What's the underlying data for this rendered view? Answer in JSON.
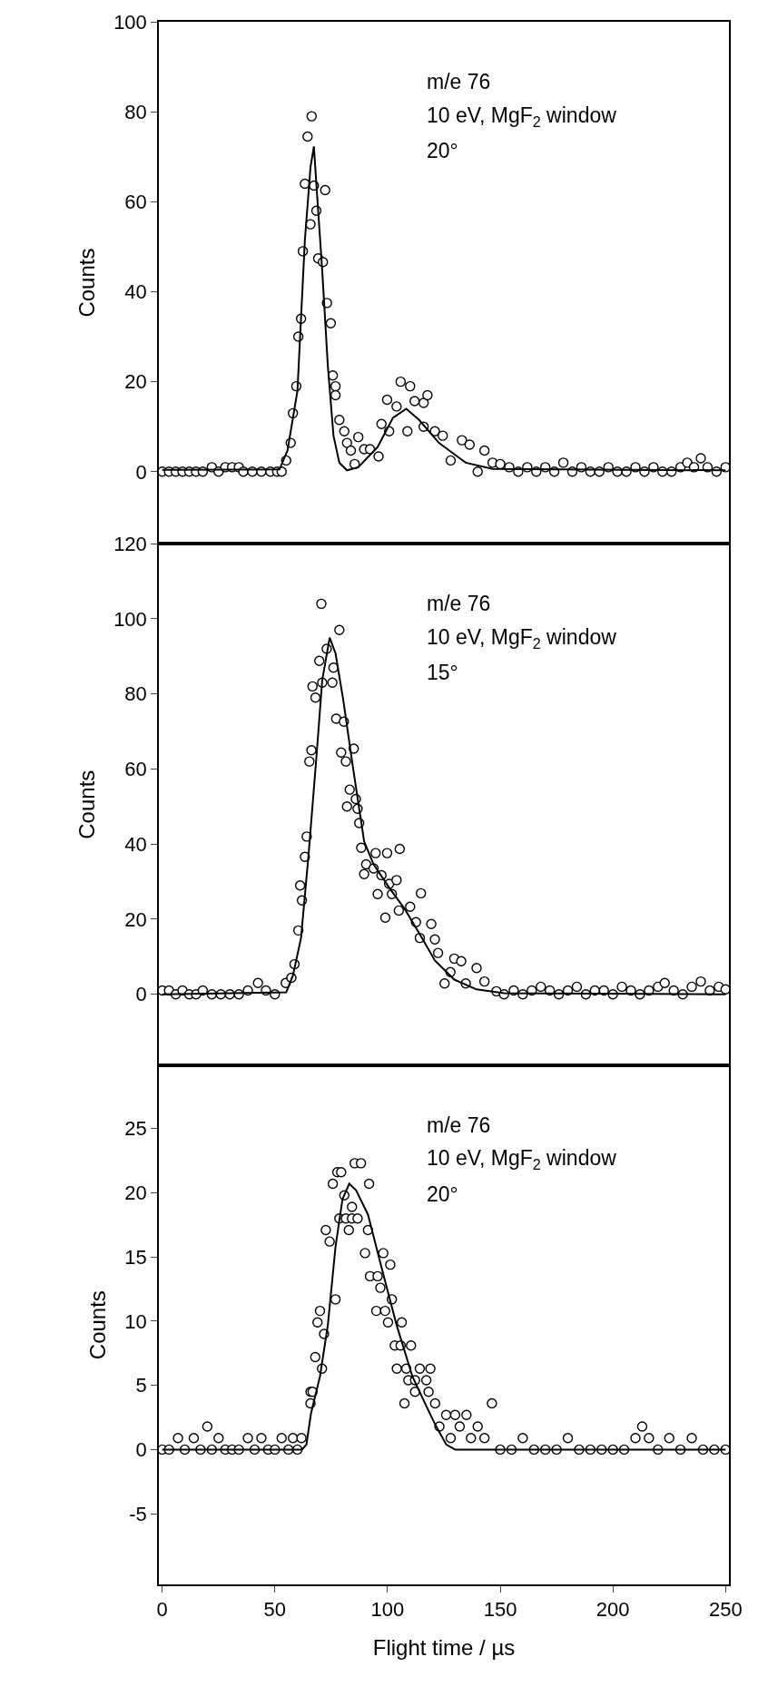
{
  "chart_data": [
    {
      "type": "scatter",
      "ylabel": "Counts",
      "annotations": [
        "m/e 76",
        "10 eV, MgF$_{2}$ window",
        "20°"
      ],
      "xlim": [
        -1.5,
        251.5
      ],
      "ylim": [
        -16,
        100
      ],
      "yticks": [
        0,
        20,
        40,
        60,
        80,
        100
      ],
      "tick_labels": "y",
      "series": [
        {
          "marker": "circle",
          "color": "#000000",
          "x": [
            0,
            3,
            6,
            9,
            12,
            15,
            18,
            22,
            25,
            28,
            31,
            34,
            36,
            40,
            44,
            48,
            51,
            53,
            55,
            57,
            58,
            59.5,
            60.4,
            61.6,
            62.4,
            63.3,
            64.5,
            65.8,
            66.3,
            67.3,
            68.4,
            69.2,
            71.3,
            72.3,
            73.1,
            74.8,
            75.7,
            76.9,
            76.9,
            78.6,
            80.8,
            82,
            83.7,
            85.4,
            87,
            89.6,
            92.2,
            96,
            97.3,
            99.8,
            100.7,
            104,
            105.8,
            108.8,
            110,
            112,
            116,
            116,
            117.7,
            121,
            124.5,
            128,
            133,
            136.4,
            140,
            143,
            146.6,
            150,
            154,
            158,
            162,
            166,
            170,
            174,
            178,
            182,
            186,
            190,
            194,
            198,
            202,
            206,
            210,
            214,
            218,
            222,
            226,
            230,
            233,
            236,
            239,
            242,
            246,
            250
          ],
          "values": [
            0,
            0,
            0,
            0,
            0,
            0,
            0,
            1,
            0,
            1,
            1,
            1,
            0,
            0,
            0,
            0,
            0,
            0,
            2.5,
            6.4,
            13,
            19,
            30,
            34,
            49,
            64,
            74.5,
            55,
            79,
            63.6,
            58,
            47.4,
            46.6,
            62.6,
            37.5,
            33,
            21.4,
            19,
            17,
            11.5,
            9,
            6.4,
            4.7,
            1.7,
            7.7,
            5,
            5,
            3.4,
            10.6,
            16,
            9,
            14.5,
            20,
            9,
            19,
            15.7,
            15.3,
            10,
            17,
            9,
            8,
            2.5,
            7,
            6,
            0,
            4.7,
            2,
            1.7,
            1,
            0,
            1,
            0,
            1,
            0,
            2,
            0,
            1,
            0,
            0,
            1,
            0,
            0,
            1,
            0,
            1,
            0,
            0,
            1,
            2,
            1,
            3,
            1,
            0,
            1
          ]
        },
        {
          "type": "line",
          "color": "#000000",
          "line_style": "solid",
          "x": [
            0,
            52,
            55.6,
            60,
            63.3,
            65.8,
            67.3,
            68.7,
            71,
            73.5,
            76,
            78.6,
            82,
            87,
            95.6,
            102.4,
            108.3,
            114,
            122.8,
            134.7,
            146.6,
            250
          ],
          "values": [
            0.4,
            0.5,
            4.7,
            18,
            51.5,
            67.7,
            72.3,
            61.7,
            44.7,
            23.4,
            8,
            2,
            0.3,
            1,
            5.5,
            12,
            14,
            11.5,
            6.4,
            2,
            0.6,
            0.3
          ]
        }
      ]
    },
    {
      "type": "scatter",
      "ylabel": "Counts",
      "annotations": [
        "m/e 76",
        "10 eV, MgF$_{2}$ window",
        "15°"
      ],
      "xlim": [
        -1.5,
        251.5
      ],
      "ylim": [
        -19,
        120
      ],
      "yticks": [
        0,
        20,
        40,
        60,
        80,
        100,
        120
      ],
      "tick_labels": "y",
      "series": [
        {
          "marker": "circle",
          "color": "#000000",
          "x": [
            0,
            3,
            6,
            9,
            12,
            15,
            18,
            22,
            26,
            30,
            34,
            38,
            42.5,
            46,
            50,
            54.8,
            57.3,
            58.7,
            60.4,
            61.2,
            62,
            63.3,
            64.1,
            65.3,
            66.2,
            66.7,
            68,
            69.7,
            70.6,
            71,
            73,
            75.5,
            76,
            77.2,
            78.6,
            79.4,
            80.6,
            81.5,
            82,
            83.2,
            85,
            85.9,
            86.7,
            87.4,
            88.3,
            89.6,
            90.5,
            93.8,
            94.7,
            95.6,
            97.3,
            99,
            99.8,
            100.7,
            101.9,
            104,
            105,
            105.4,
            110,
            112.6,
            114.3,
            114.8,
            119.4,
            121,
            122.4,
            125.3,
            127.9,
            129.6,
            132.7,
            134.7,
            139.5,
            143,
            148.3,
            151.7,
            156,
            160,
            164,
            168,
            172,
            176,
            180,
            184,
            188,
            192,
            196,
            200,
            204,
            208,
            212,
            216,
            220,
            223,
            227,
            231,
            235,
            239,
            243,
            247,
            250
          ],
          "values": [
            1,
            1,
            0,
            1,
            0,
            0,
            1,
            0,
            0,
            0,
            0,
            1,
            3,
            1,
            0,
            3,
            4.4,
            8,
            17,
            29,
            25,
            36.6,
            42,
            62,
            65,
            82,
            79,
            88.8,
            104,
            83,
            92,
            83,
            87,
            73.4,
            97,
            64.4,
            72.6,
            62,
            50,
            54.5,
            65.4,
            52,
            49.4,
            45.6,
            39,
            32,
            34.6,
            33.5,
            37.6,
            26.7,
            31.7,
            20.4,
            37.6,
            29.4,
            26.7,
            30.4,
            22.3,
            38.7,
            23.3,
            19.2,
            15,
            26.9,
            18.7,
            14.6,
            11,
            2.9,
            5.9,
            9.5,
            8.8,
            2.9,
            7,
            3.4,
            0.8,
            0,
            1,
            0,
            1,
            2,
            1,
            0,
            1,
            2,
            0,
            1,
            1,
            0,
            2,
            1,
            0,
            1,
            2,
            3,
            1,
            0,
            2,
            3.4,
            1,
            2,
            1.3
          ]
        },
        {
          "type": "line",
          "color": "#000000",
          "line_style": "solid",
          "x": [
            0,
            55,
            58,
            61.6,
            65,
            68.4,
            71,
            74.3,
            76.9,
            80.3,
            84.5,
            89.6,
            93.8,
            100.7,
            107.5,
            114.3,
            121,
            129.6,
            139.5,
            151.7,
            250
          ],
          "values": [
            0,
            0.5,
            5,
            15,
            37.6,
            63,
            83.6,
            95,
            90.8,
            78.5,
            61,
            40.7,
            34.6,
            28.4,
            22.8,
            16,
            9,
            3.9,
            1.3,
            0.3,
            0
          ]
        }
      ]
    },
    {
      "type": "scatter",
      "ylabel": "Counts",
      "xlabel": "Flight time / µs",
      "annotations": [
        "m/e 76",
        "10 eV, MgF$_{2}$ window",
        "20°"
      ],
      "xlim": [
        -1.5,
        251.5
      ],
      "xticks": [
        0,
        50,
        100,
        150,
        200,
        250
      ],
      "ylim": [
        -10.5,
        29.9
      ],
      "yticks": [
        -5,
        0,
        5,
        10,
        15,
        20,
        25
      ],
      "series": [
        {
          "marker": "circle",
          "color": "#000000",
          "x": [
            0,
            3,
            7,
            10,
            14,
            17,
            20,
            22,
            25,
            28,
            31,
            34,
            38,
            41,
            44,
            47,
            50,
            53,
            56,
            58,
            60,
            61.8,
            65.8,
            65.8,
            66.7,
            67.9,
            68.9,
            70,
            70.9,
            71.8,
            72.6,
            74.3,
            75.7,
            76.9,
            77.7,
            78.6,
            79.4,
            80.8,
            81.5,
            82.8,
            84.2,
            84.2,
            85.4,
            86.7,
            88.2,
            90,
            91.3,
            91.8,
            92.2,
            95,
            95.6,
            96.8,
            98.1,
            98.9,
            100.2,
            101.2,
            101.9,
            103.2,
            104.1,
            105.8,
            106.3,
            107.5,
            108.3,
            109.2,
            110.4,
            112.2,
            112.2,
            114.3,
            117.2,
            118.2,
            119,
            121.1,
            123,
            126,
            128,
            130,
            132,
            135,
            137,
            140,
            143,
            146.3,
            150,
            155,
            160,
            165,
            170,
            175,
            180,
            185,
            190,
            195,
            200,
            205,
            210,
            213,
            216,
            220,
            225,
            230,
            235,
            240,
            245,
            250
          ],
          "values": [
            0,
            0,
            0.9,
            0,
            0.9,
            0,
            1.8,
            0,
            0.9,
            0,
            0,
            0,
            0.9,
            0,
            0.9,
            0,
            0,
            0.9,
            0,
            0.9,
            0,
            0.9,
            3.6,
            4.5,
            4.5,
            7.2,
            9.9,
            10.8,
            6.3,
            9,
            17.1,
            16.2,
            20.7,
            11.7,
            21.6,
            18,
            21.6,
            19.8,
            18,
            17.1,
            18,
            18.9,
            22.3,
            18,
            22.3,
            15.3,
            17.1,
            20.7,
            13.5,
            10.8,
            13.5,
            12.6,
            15.3,
            10.8,
            9.9,
            14.4,
            11.7,
            8.1,
            6.3,
            8.1,
            9.9,
            3.6,
            6.3,
            5.4,
            8.1,
            5.4,
            4.5,
            6.3,
            5.4,
            4.5,
            6.3,
            3.6,
            1.8,
            2.7,
            0.9,
            2.7,
            1.8,
            2.7,
            0.9,
            1.8,
            0.9,
            3.6,
            0,
            0,
            0.9,
            0,
            0,
            0,
            0.9,
            0,
            0,
            0,
            0,
            0,
            0.9,
            1.8,
            0.9,
            0,
            0.9,
            0,
            0.9,
            0,
            0,
            0
          ]
        },
        {
          "type": "line",
          "color": "#000000",
          "line_style": "solid",
          "x": [
            0,
            62,
            64,
            66,
            70,
            73.5,
            76.9,
            80,
            83,
            86,
            91.3,
            97.3,
            104,
            111,
            117.7,
            121,
            126,
            130,
            250
          ],
          "values": [
            0,
            0,
            0.4,
            2.8,
            5.7,
            9.7,
            15.8,
            19.5,
            20.7,
            20.2,
            18.3,
            14.2,
            9.7,
            5.7,
            3.2,
            2,
            0.4,
            0,
            0
          ]
        }
      ]
    }
  ]
}
